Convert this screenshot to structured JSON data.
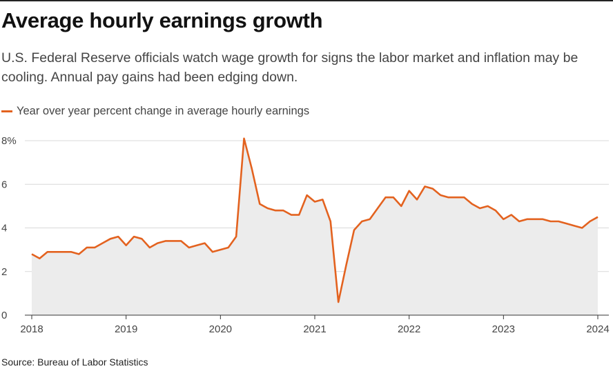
{
  "header": {
    "title": "Average hourly earnings growth",
    "subtitle": "U.S. Federal Reserve officials watch wage growth for signs the labor market and inflation may be cooling. Annual pay gains had been edging down."
  },
  "colors": {
    "line": "#e3621f",
    "area": "#ececec",
    "grid": "#d8d8d8",
    "axis": "#333333"
  },
  "footer": {
    "source": "Source: Bureau of Labor Statistics"
  },
  "chart_data": {
    "type": "area",
    "series": [
      {
        "name": "Year over year percent change in average hourly earnings",
        "start": "2018-01",
        "frequency": "monthly",
        "values": [
          2.8,
          2.6,
          2.9,
          2.9,
          2.9,
          2.9,
          2.8,
          3.1,
          3.1,
          3.3,
          3.5,
          3.6,
          3.2,
          3.6,
          3.5,
          3.1,
          3.3,
          3.4,
          3.4,
          3.4,
          3.1,
          3.2,
          3.3,
          2.9,
          3.0,
          3.1,
          3.6,
          8.1,
          6.7,
          5.1,
          4.9,
          4.8,
          4.8,
          4.6,
          4.6,
          5.5,
          5.2,
          5.3,
          4.3,
          0.6,
          2.3,
          3.9,
          4.3,
          4.4,
          4.9,
          5.4,
          5.4,
          5.0,
          5.7,
          5.3,
          5.9,
          5.8,
          5.5,
          5.4,
          5.4,
          5.4,
          5.1,
          4.9,
          5.0,
          4.8,
          4.4,
          4.6,
          4.3,
          4.4,
          4.4,
          4.4,
          4.3,
          4.3,
          4.2,
          4.1,
          4.0,
          4.3,
          4.5
        ]
      }
    ],
    "x_ticks": [
      "2018",
      "2019",
      "2020",
      "2021",
      "2022",
      "2023",
      "2024"
    ],
    "y_ticks": [
      "0",
      "2",
      "4",
      "6",
      "8%"
    ],
    "ylim": [
      0,
      8
    ],
    "xlim": [
      "2018-01",
      "2024-01"
    ],
    "grid": true,
    "legend": "top-left"
  }
}
